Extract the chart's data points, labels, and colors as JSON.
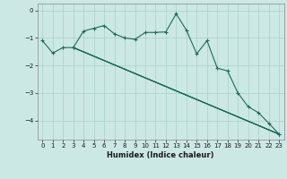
{
  "xlabel": "Humidex (Indice chaleur)",
  "bg_color": "#cce8e4",
  "grid_color": "#a8cfca",
  "line_color": "#1a6b5a",
  "xlim": [
    -0.5,
    23.5
  ],
  "ylim": [
    -4.7,
    0.25
  ],
  "yticks": [
    0,
    -1,
    -2,
    -3,
    -4
  ],
  "xticks": [
    0,
    1,
    2,
    3,
    4,
    5,
    6,
    7,
    8,
    9,
    10,
    11,
    12,
    13,
    14,
    15,
    16,
    17,
    18,
    19,
    20,
    21,
    22,
    23
  ],
  "line1": [
    [
      0,
      -1.1
    ],
    [
      1,
      -1.55
    ],
    [
      2,
      -1.35
    ],
    [
      3,
      -1.35
    ],
    [
      4,
      -0.75
    ],
    [
      5,
      -0.65
    ],
    [
      6,
      -0.55
    ],
    [
      7,
      -0.85
    ],
    [
      8,
      -1.0
    ],
    [
      9,
      -1.05
    ],
    [
      10,
      -0.8
    ],
    [
      11,
      -0.8
    ],
    [
      12,
      -0.78
    ],
    [
      13,
      -0.12
    ],
    [
      14,
      -0.72
    ],
    [
      15,
      -1.58
    ],
    [
      16,
      -1.1
    ],
    [
      17,
      -2.1
    ],
    [
      18,
      -2.2
    ],
    [
      19,
      -3.0
    ],
    [
      20,
      -3.5
    ],
    [
      21,
      -3.72
    ],
    [
      22,
      -4.1
    ],
    [
      23,
      -4.5
    ]
  ],
  "line2": [
    [
      0,
      -1.1
    ],
    [
      1,
      -1.55
    ],
    [
      2,
      -1.35
    ],
    [
      3,
      -1.35
    ],
    [
      23,
      -4.5
    ]
  ],
  "line3": [
    [
      0,
      -1.1
    ],
    [
      1,
      -1.55
    ],
    [
      2,
      -1.35
    ],
    [
      3,
      -1.35
    ],
    [
      23,
      -4.5
    ]
  ],
  "line4": [
    [
      0,
      -1.1
    ],
    [
      1,
      -1.55
    ],
    [
      2,
      -1.35
    ],
    [
      3,
      -1.35
    ],
    [
      23,
      -4.5
    ]
  ]
}
